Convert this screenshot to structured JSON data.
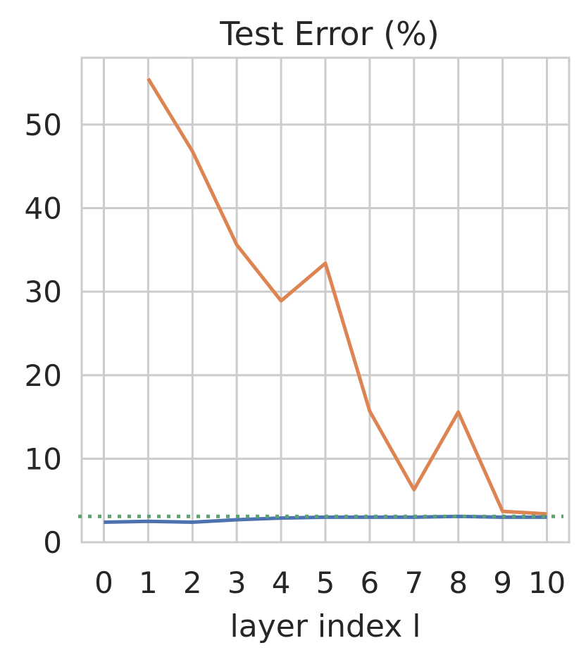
{
  "chart_data": {
    "type": "line",
    "title": "Test Error (%)",
    "xlabel": "layer index l",
    "ylabel": "",
    "x": [
      0,
      1,
      2,
      3,
      4,
      5,
      6,
      7,
      8,
      9,
      10
    ],
    "xlim": [
      -0.5,
      10.5
    ],
    "ylim": [
      0,
      58
    ],
    "yticks": [
      0,
      10,
      20,
      30,
      40,
      50
    ],
    "grid": true,
    "series": [
      {
        "color": "#dd8452",
        "style": "solid",
        "values": [
          null,
          55.5,
          46.8,
          35.6,
          28.9,
          33.4,
          15.7,
          6.3,
          15.6,
          3.7,
          3.4
        ]
      },
      {
        "color": "#4c72b0",
        "style": "solid",
        "values": [
          2.4,
          2.5,
          2.4,
          2.7,
          2.9,
          3.0,
          3.0,
          3.0,
          3.1,
          3.0,
          3.0
        ]
      },
      {
        "color": "#55a868",
        "style": "dotted",
        "hline": 3.1
      }
    ]
  }
}
